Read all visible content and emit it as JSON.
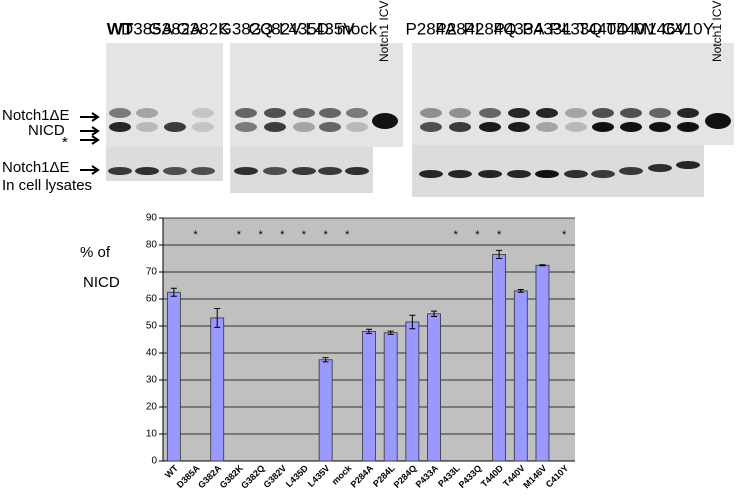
{
  "blot": {
    "lanes": [
      {
        "label": "WT",
        "color": "#000000"
      },
      {
        "label": "D385A",
        "color": "#e0201c"
      },
      {
        "label": "G382A",
        "color": "#1fa050"
      },
      {
        "label": "G382K",
        "color": "#000000"
      },
      {
        "label": "G382Q",
        "color": "#000000"
      },
      {
        "label": "G382V",
        "color": "#000000"
      },
      {
        "label": "L435D",
        "color": "#000000"
      },
      {
        "label": "L435V",
        "color": "#1fa050"
      },
      {
        "label": "mock",
        "color": "#000000"
      },
      {
        "label": "Notch1 ICV",
        "color": "#000000"
      },
      {
        "label": "P284A",
        "color": "#000000"
      },
      {
        "label": "P284L",
        "color": "#1f7fc0"
      },
      {
        "label": "P284Q",
        "color": "#000000"
      },
      {
        "label": "P433A",
        "color": "#1fa050"
      },
      {
        "label": "P433L",
        "color": "#000000"
      },
      {
        "label": "P433Q",
        "color": "#000000"
      },
      {
        "label": "T440D",
        "color": "#000000"
      },
      {
        "label": "T440V",
        "color": "#000000"
      },
      {
        "label": "M146V",
        "color": "#1f7fc0"
      },
      {
        "label": "C410Y",
        "color": "#1f7fc0"
      },
      {
        "label": "Notch1 ICV",
        "color": "#000000"
      }
    ],
    "side_labels": [
      "Notch1ΔE",
      "NICD",
      "*",
      "Notch1ΔE",
      "In cell lysates"
    ]
  },
  "chart_data": {
    "type": "bar",
    "ylabel": [
      "%  of",
      "NICD"
    ],
    "categories": [
      "WT",
      "D385A",
      "G382A",
      "G382K",
      "G382Q",
      "G382V",
      "L435D",
      "L435V",
      "mock",
      "P284A",
      "P284L",
      "P284Q",
      "P433A",
      "P433L",
      "P433Q",
      "T440D",
      "T440V",
      "M146V",
      "C410Y"
    ],
    "values": [
      62.5,
      null,
      53,
      null,
      null,
      null,
      null,
      37.5,
      null,
      48,
      47.5,
      51.5,
      54.5,
      null,
      null,
      76.5,
      63,
      72.5,
      null
    ],
    "errors": [
      1.5,
      null,
      3.5,
      null,
      null,
      null,
      null,
      0.8,
      null,
      0.8,
      0.6,
      2.5,
      1,
      null,
      null,
      1.5,
      0.5,
      0.2,
      null
    ],
    "annotations": [
      null,
      "*",
      null,
      "*",
      "*",
      "*",
      "*",
      "*",
      "*",
      null,
      null,
      null,
      null,
      "*",
      "*",
      "*",
      null,
      null,
      "*"
    ],
    "color": "#9999ff",
    "ylim": [
      0,
      90
    ],
    "yticks": [
      0,
      10,
      20,
      30,
      40,
      50,
      60,
      70,
      80,
      90
    ],
    "grid": true
  }
}
